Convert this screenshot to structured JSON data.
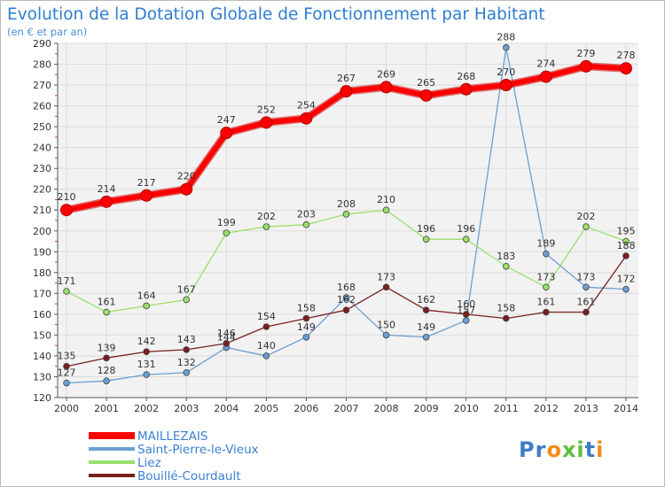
{
  "chart_data": {
    "type": "line",
    "title": "Evolution de la Dotation Globale de Fonctionnement par Habitant",
    "subtitle": "(en € et par an)",
    "xlabel": "",
    "ylabel": "",
    "ylim": [
      120,
      290
    ],
    "yticks": [
      120,
      130,
      140,
      150,
      160,
      170,
      180,
      190,
      200,
      210,
      220,
      230,
      240,
      250,
      260,
      270,
      280,
      290
    ],
    "grid": true,
    "legend_position": "bottom-left",
    "x": [
      "2000",
      "2001",
      "2002",
      "2003",
      "2004",
      "2005",
      "2006",
      "2007",
      "2008",
      "2009",
      "2010",
      "2011",
      "2012",
      "2013",
      "2014"
    ],
    "series": [
      {
        "name": "MAILLEZAIS",
        "color": "#ff0000",
        "values": [
          210,
          214,
          217,
          220,
          247,
          252,
          254,
          267,
          269,
          265,
          268,
          270,
          274,
          279,
          278
        ]
      },
      {
        "name": "Saint-Pierre-le-Vieux",
        "color": "#6b9fd1",
        "values": [
          127,
          128,
          131,
          132,
          144,
          140,
          149,
          168,
          150,
          149,
          157,
          288,
          189,
          173,
          172
        ]
      },
      {
        "name": "Liez",
        "color": "#99e06a",
        "values": [
          171,
          161,
          164,
          167,
          199,
          202,
          203,
          208,
          210,
          196,
          196,
          183,
          173,
          202,
          195
        ]
      },
      {
        "name": "Bouillé-Courdault",
        "color": "#7a1f1f",
        "values": [
          135,
          139,
          142,
          143,
          146,
          154,
          158,
          162,
          173,
          162,
          160,
          158,
          161,
          161,
          188
        ]
      }
    ]
  },
  "brand": {
    "logo_text": "Proxiti"
  }
}
